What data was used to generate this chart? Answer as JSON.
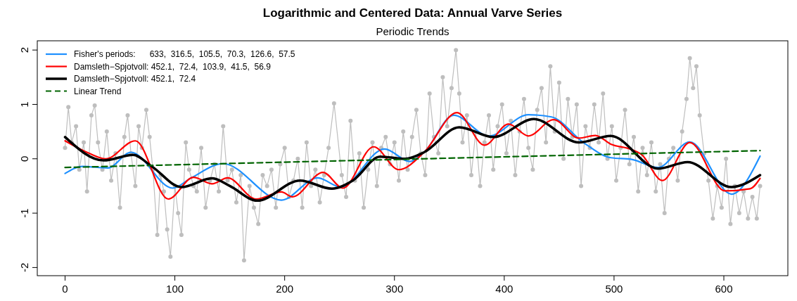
{
  "chart_data": {
    "type": "line",
    "title": "Logarithmic and Centered Data: Annual Varve Series",
    "subtitle": "Periodic Trends",
    "xlim": [
      -25.3,
      658.3
    ],
    "xticks": [
      0,
      100,
      200,
      300,
      400,
      500,
      600
    ],
    "ylim": [
      -2.15,
      2.17
    ],
    "yticks": [
      -2,
      -1,
      0,
      1,
      2
    ],
    "grid": false,
    "legend": "top left",
    "series": [
      {
        "color": "#bebebe",
        "marker": "circle",
        "x": [
          0,
          3,
          6,
          10,
          13,
          17,
          20,
          24,
          27,
          30,
          34,
          38,
          42,
          46,
          50,
          54,
          57,
          60,
          64,
          67,
          70,
          74,
          77,
          80,
          84,
          87,
          90,
          93,
          96,
          100,
          103,
          106,
          110,
          113,
          117,
          120,
          124,
          128,
          132,
          136,
          140,
          144,
          148,
          152,
          156,
          160,
          163,
          168,
          172,
          176,
          180,
          184,
          188,
          192,
          196,
          200,
          204,
          208,
          212,
          216,
          220,
          224,
          228,
          232,
          236,
          240,
          245,
          252,
          256,
          260,
          264,
          268,
          272,
          276,
          280,
          284,
          288,
          292,
          296,
          300,
          304,
          308,
          312,
          316,
          320,
          324,
          328,
          332,
          336,
          340,
          344,
          348,
          352,
          356,
          359,
          362,
          366,
          370,
          374,
          378,
          382,
          386,
          390,
          394,
          398,
          402,
          406,
          410,
          414,
          418,
          422,
          426,
          430,
          434,
          438,
          442,
          446,
          450,
          454,
          458,
          462,
          466,
          470,
          474,
          478,
          482,
          486,
          490,
          494,
          498,
          502,
          506,
          510,
          514,
          518,
          522,
          526,
          530,
          534,
          538,
          542,
          546,
          550,
          554,
          558,
          562,
          566,
          569,
          572,
          575,
          578,
          582,
          586,
          590,
          594,
          598,
          602,
          606,
          610,
          614,
          618,
          622,
          626,
          630,
          633
        ],
        "values": [
          0.2,
          0.95,
          0.3,
          0.6,
          -0.2,
          0.3,
          -0.6,
          0.8,
          0.98,
          0.3,
          -0.2,
          0.5,
          -0.4,
          0.1,
          -0.9,
          0.4,
          0.8,
          0.1,
          -0.5,
          0.6,
          0.2,
          0.9,
          0.4,
          -0.2,
          -1.4,
          -0.3,
          -0.6,
          -1.3,
          -1.8,
          -0.5,
          -1.0,
          -1.4,
          0.3,
          -0.2,
          -0.5,
          -0.6,
          0.2,
          -0.9,
          -0.4,
          -0.1,
          -0.6,
          0.6,
          -0.4,
          -0.2,
          -0.8,
          -0.3,
          -1.87,
          -0.5,
          -0.9,
          -1.2,
          -0.3,
          -0.5,
          -0.2,
          -0.9,
          -0.1,
          0.2,
          -0.7,
          -0.4,
          0.0,
          -0.9,
          0.3,
          -0.5,
          -0.2,
          -0.8,
          -0.3,
          0.2,
          1.02,
          -0.3,
          -0.7,
          0.7,
          -0.4,
          0.1,
          -0.9,
          -0.2,
          0.3,
          -0.5,
          0.2,
          0.4,
          -0.1,
          0.3,
          -0.4,
          0.5,
          -0.2,
          0.4,
          0.9,
          0.1,
          -0.3,
          1.2,
          0.4,
          0.1,
          1.5,
          0.6,
          1.3,
          2.0,
          1.2,
          0.3,
          0.8,
          -0.3,
          0.5,
          -0.5,
          0.3,
          0.8,
          -0.2,
          0.6,
          1.0,
          0.1,
          0.7,
          -0.3,
          0.5,
          1.1,
          0.2,
          -0.2,
          0.9,
          1.3,
          0.3,
          1.7,
          0.5,
          1.4,
          0.0,
          1.1,
          0.4,
          1.0,
          -0.5,
          0.6,
          0.2,
          1.0,
          0.3,
          1.2,
          0.0,
          0.6,
          -0.4,
          0.2,
          0.9,
          -0.1,
          0.4,
          -0.6,
          0.2,
          -0.3,
          0.3,
          -0.6,
          -0.1,
          -1.0,
          0.0,
          0.2,
          -0.4,
          0.5,
          1.1,
          1.85,
          1.3,
          1.7,
          0.8,
          0.1,
          -0.4,
          -1.1,
          -0.5,
          -0.9,
          0.0,
          -1.2,
          -0.5,
          -1.0,
          -0.6,
          -1.1,
          -0.7,
          -1.1,
          -0.5
        ]
      },
      {
        "name": "Fisher's periods:      633,  316.5,  105.5,  70.3,  126.6,  57.5",
        "color": "#1e90ff",
        "marker": "none",
        "x": [
          0,
          16,
          39,
          60,
          98,
          115,
          144,
          197,
          230,
          251,
          291,
          314,
          327,
          354,
          386,
          422,
          443,
          472,
          497,
          516,
          540,
          569,
          607,
          633
        ],
        "values": [
          -0.27,
          -0.14,
          -0.17,
          0.12,
          -0.54,
          -0.35,
          -0.09,
          -0.76,
          -0.35,
          -0.52,
          0.18,
          -0.05,
          0.12,
          0.8,
          0.42,
          0.81,
          0.77,
          0.3,
          0.02,
          -0.01,
          -0.16,
          0.31,
          -0.65,
          0.05
        ]
      },
      {
        "name": "Damsleth−Spjotvoll: 452.1,  72.4,  103.9,  41.5,  56.9",
        "color": "#ff0000",
        "marker": "none",
        "x": [
          0,
          22,
          37,
          64,
          94,
          117,
          134,
          148,
          174,
          197,
          207,
          235,
          253,
          281,
          304,
          327,
          357,
          382,
          404,
          422,
          445,
          468,
          483,
          497,
          516,
          525,
          544,
          569,
          601,
          624,
          633
        ],
        "values": [
          0.33,
          0.1,
          0.0,
          0.33,
          -0.74,
          -0.34,
          -0.46,
          -0.35,
          -0.74,
          -0.61,
          -0.7,
          -0.25,
          -0.54,
          0.22,
          -0.2,
          0.12,
          0.85,
          0.25,
          0.64,
          0.42,
          0.72,
          0.38,
          0.43,
          0.27,
          0.17,
          0.08,
          -0.4,
          0.3,
          -0.59,
          -0.55,
          -0.36
        ]
      },
      {
        "name": "Damsleth−Spjotvoll: 452.1,  72.4",
        "color": "#000000",
        "marker": "none",
        "x": [
          0,
          35,
          62,
          79,
          106,
          134,
          150,
          175,
          214,
          243,
          262,
          287,
          310,
          327,
          359,
          390,
          427,
          468,
          497,
          540,
          567,
          607,
          633
        ],
        "values": [
          0.4,
          -0.03,
          0.07,
          -0.14,
          -0.52,
          -0.36,
          -0.5,
          -0.77,
          -0.4,
          -0.55,
          -0.4,
          0.04,
          0.0,
          0.12,
          0.58,
          0.4,
          0.73,
          0.3,
          0.42,
          -0.18,
          -0.06,
          -0.52,
          -0.3
        ]
      },
      {
        "name": "Linear Trend",
        "color": "#006400",
        "marker": "none",
        "line_style": "dashed",
        "x": [
          0,
          633
        ],
        "values": [
          -0.16,
          0.15
        ]
      }
    ]
  }
}
